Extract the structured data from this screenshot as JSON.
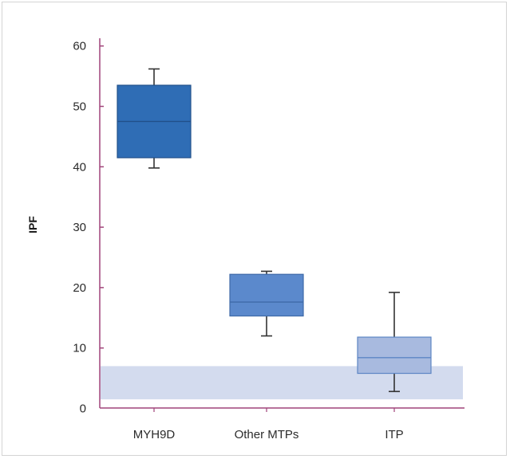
{
  "chart_data": {
    "type": "boxplot",
    "title": "",
    "ylabel": "IPF",
    "xlabel": "",
    "ylim": [
      0,
      60
    ],
    "yticks": [
      0,
      10,
      20,
      30,
      40,
      50,
      60
    ],
    "grid": false,
    "categories": [
      "MYH9D",
      "Other MTPs",
      "ITP"
    ],
    "boxes": [
      {
        "category": "MYH9D",
        "whisker_low": 39.8,
        "q1": 41.5,
        "median": 47.5,
        "q3": 53.5,
        "whisker_high": 56.2,
        "color": "#2f6db5",
        "stroke": "#21508a"
      },
      {
        "category": "Other MTPs",
        "whisker_low": 12.0,
        "q1": 15.3,
        "median": 17.6,
        "q3": 22.2,
        "whisker_high": 22.7,
        "color": "#5b89cc",
        "stroke": "#3f6aa8"
      },
      {
        "category": "ITP",
        "whisker_low": 2.8,
        "q1": 5.8,
        "median": 8.4,
        "q3": 11.8,
        "whisker_high": 19.2,
        "color": "#a8badf",
        "stroke": "#5d86c4"
      }
    ],
    "reference_band": {
      "from": 1.5,
      "to": 7.0,
      "color": "#d3dbee"
    },
    "axis_color": "#a0447a"
  }
}
